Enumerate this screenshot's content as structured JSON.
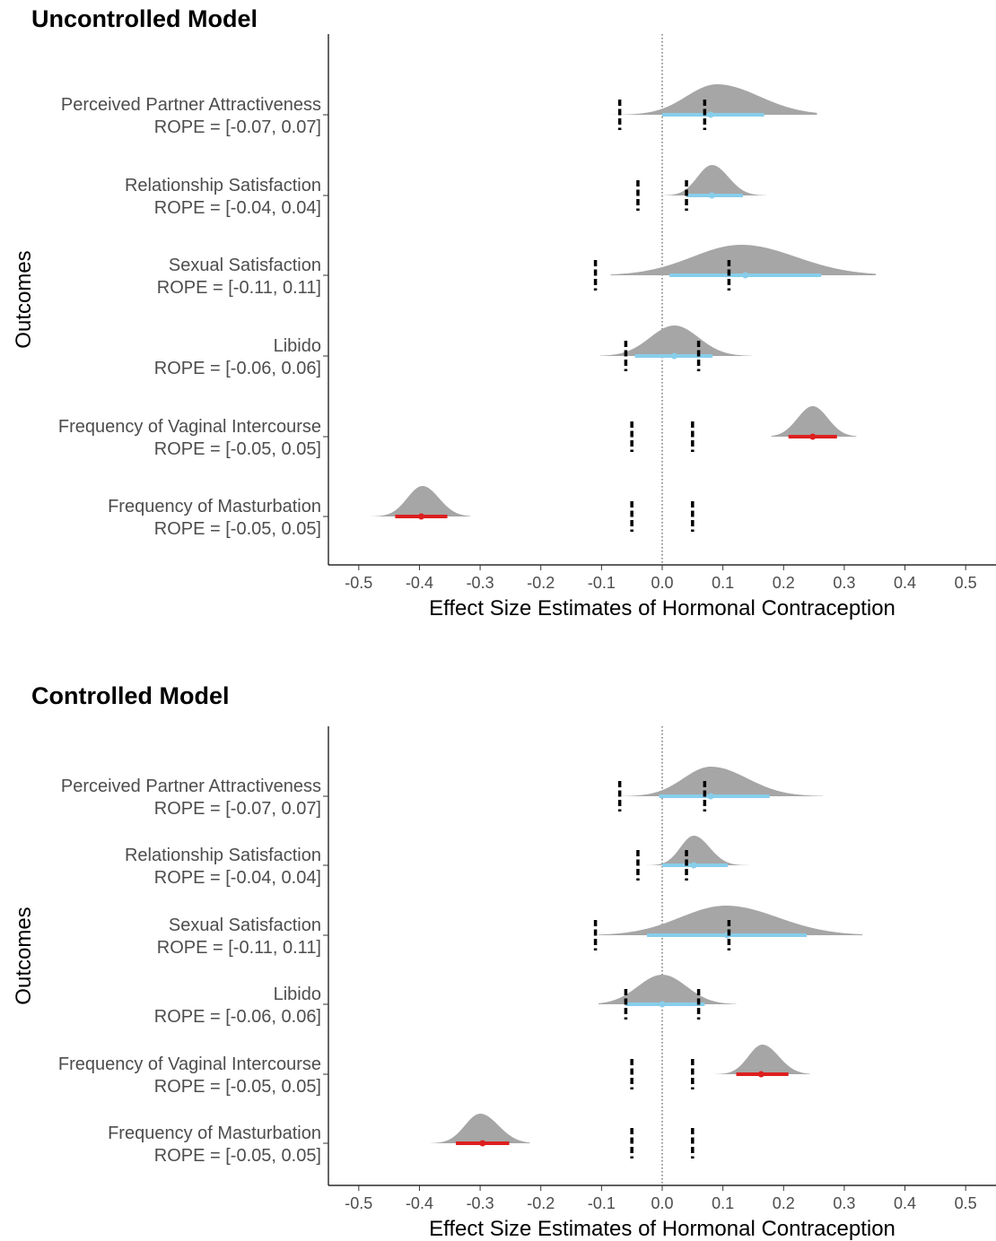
{
  "colors": {
    "density": "#a6a6a6",
    "interval_in_rope": "#87ceeb",
    "interval_outside_rope": "#dd1f1f",
    "rope_dash": "#000000",
    "zero_line": "#333333"
  },
  "chart_data": [
    {
      "type": "density-interval",
      "title": "Uncontrolled Model",
      "xlabel": "Effect Size Estimates of Hormonal Contraception",
      "ylabel": "Outcomes",
      "xlim": [
        -0.55,
        0.55
      ],
      "x_ticks": [
        -0.5,
        -0.4,
        -0.3,
        -0.2,
        -0.1,
        0.0,
        0.1,
        0.2,
        0.3,
        0.4,
        0.5
      ],
      "x_tick_labels": [
        "-0.5",
        "-0.4",
        "-0.3",
        "-0.2",
        "-0.1",
        "0.0",
        "0.1",
        "0.2",
        "0.3",
        "0.4",
        "0.5"
      ],
      "grid": false,
      "reference_line_x": 0,
      "outcomes": [
        {
          "name": "Perceived Partner Attractiveness",
          "rope_label": "ROPE = [-0.07, 0.07]",
          "rope": [
            -0.07,
            0.07
          ],
          "mode": 0.09,
          "left_sd": 0.05,
          "right_sd": 0.07,
          "density_range": [
            -0.105,
            0.255
          ],
          "point": 0.08,
          "interval": [
            0.0,
            0.168
          ],
          "interval_color": "interval_in_rope"
        },
        {
          "name": "Relationship Satisfaction",
          "rope_label": "ROPE = [-0.04, 0.04]",
          "rope": [
            -0.04,
            0.04
          ],
          "mode": 0.082,
          "left_sd": 0.024,
          "right_sd": 0.027,
          "density_range": [
            -0.01,
            0.172
          ],
          "point": 0.082,
          "interval": [
            0.04,
            0.133
          ],
          "interval_color": "interval_in_rope"
        },
        {
          "name": "Sexual Satisfaction",
          "rope_label": "ROPE = [-0.11, 0.11]",
          "rope": [
            -0.11,
            0.11
          ],
          "mode": 0.13,
          "left_sd": 0.08,
          "right_sd": 0.09,
          "density_range": [
            -0.085,
            0.352
          ],
          "point": 0.137,
          "interval": [
            0.012,
            0.262
          ],
          "interval_color": "interval_in_rope"
        },
        {
          "name": "Libido",
          "rope_label": "ROPE = [-0.06, 0.06]",
          "rope": [
            -0.06,
            0.06
          ],
          "mode": 0.02,
          "left_sd": 0.04,
          "right_sd": 0.04,
          "density_range": [
            -0.102,
            0.148
          ],
          "point": 0.02,
          "interval": [
            -0.045,
            0.083
          ],
          "interval_color": "interval_in_rope"
        },
        {
          "name": "Frequency of Vaginal Intercourse",
          "rope_label": "ROPE = [-0.05, 0.05]",
          "rope": [
            -0.05,
            0.05
          ],
          "mode": 0.248,
          "left_sd": 0.025,
          "right_sd": 0.025,
          "density_range": [
            0.18,
            0.32
          ],
          "point": 0.248,
          "interval": [
            0.208,
            0.288
          ],
          "interval_color": "interval_outside_rope"
        },
        {
          "name": "Frequency of Masturbation",
          "rope_label": "ROPE = [-0.05, 0.05]",
          "rope": [
            -0.05,
            0.05
          ],
          "mode": -0.395,
          "left_sd": 0.025,
          "right_sd": 0.027,
          "density_range": [
            -0.48,
            -0.316
          ],
          "point": -0.397,
          "interval": [
            -0.44,
            -0.354
          ],
          "interval_color": "interval_outside_rope"
        }
      ]
    },
    {
      "type": "density-interval",
      "title": "Controlled Model",
      "xlabel": "Effect Size Estimates of Hormonal Contraception",
      "ylabel": "Outcomes",
      "xlim": [
        -0.55,
        0.55
      ],
      "x_ticks": [
        -0.5,
        -0.4,
        -0.3,
        -0.2,
        -0.1,
        0.0,
        0.1,
        0.2,
        0.3,
        0.4,
        0.5
      ],
      "x_tick_labels": [
        "-0.5",
        "-0.4",
        "-0.3",
        "-0.2",
        "-0.1",
        "0.0",
        "0.1",
        "0.2",
        "0.3",
        "0.4",
        "0.5"
      ],
      "grid": false,
      "reference_line_x": 0,
      "outcomes": [
        {
          "name": "Perceived Partner Attractiveness",
          "rope_label": "ROPE = [-0.07, 0.07]",
          "rope": [
            -0.07,
            0.07
          ],
          "mode": 0.08,
          "left_sd": 0.045,
          "right_sd": 0.06,
          "density_range": [
            -0.085,
            0.265
          ],
          "point": 0.08,
          "interval": [
            -0.005,
            0.177
          ],
          "interval_color": "interval_in_rope"
        },
        {
          "name": "Relationship Satisfaction",
          "rope_label": "ROPE = [-0.04, 0.04]",
          "rope": [
            -0.04,
            0.04
          ],
          "mode": 0.052,
          "left_sd": 0.022,
          "right_sd": 0.026,
          "density_range": [
            -0.03,
            0.152
          ],
          "point": 0.052,
          "interval": [
            0.0,
            0.108
          ],
          "interval_color": "interval_in_rope"
        },
        {
          "name": "Sexual Satisfaction",
          "rope_label": "ROPE = [-0.11, 0.11]",
          "rope": [
            -0.11,
            0.11
          ],
          "mode": 0.105,
          "left_sd": 0.075,
          "right_sd": 0.085,
          "density_range": [
            -0.105,
            0.33
          ],
          "point": 0.107,
          "interval": [
            -0.025,
            0.238
          ],
          "interval_color": "interval_in_rope"
        },
        {
          "name": "Libido",
          "rope_label": "ROPE = [-0.06, 0.06]",
          "rope": [
            -0.06,
            0.06
          ],
          "mode": 0.0,
          "left_sd": 0.04,
          "right_sd": 0.04,
          "density_range": [
            -0.105,
            0.122
          ],
          "point": 0.0,
          "interval": [
            -0.06,
            0.07
          ],
          "interval_color": "interval_in_rope"
        },
        {
          "name": "Frequency of Vaginal Intercourse",
          "rope_label": "ROPE = [-0.05, 0.05]",
          "rope": [
            -0.05,
            0.05
          ],
          "mode": 0.165,
          "left_sd": 0.023,
          "right_sd": 0.027,
          "density_range": [
            0.085,
            0.243
          ],
          "point": 0.163,
          "interval": [
            0.122,
            0.208
          ],
          "interval_color": "interval_outside_rope"
        },
        {
          "name": "Frequency of Masturbation",
          "rope_label": "ROPE = [-0.05, 0.05]",
          "rope": [
            -0.05,
            0.05
          ],
          "mode": -0.3,
          "left_sd": 0.025,
          "right_sd": 0.03,
          "density_range": [
            -0.382,
            -0.218
          ],
          "point": -0.296,
          "interval": [
            -0.34,
            -0.252
          ],
          "interval_color": "interval_outside_rope"
        }
      ]
    }
  ]
}
